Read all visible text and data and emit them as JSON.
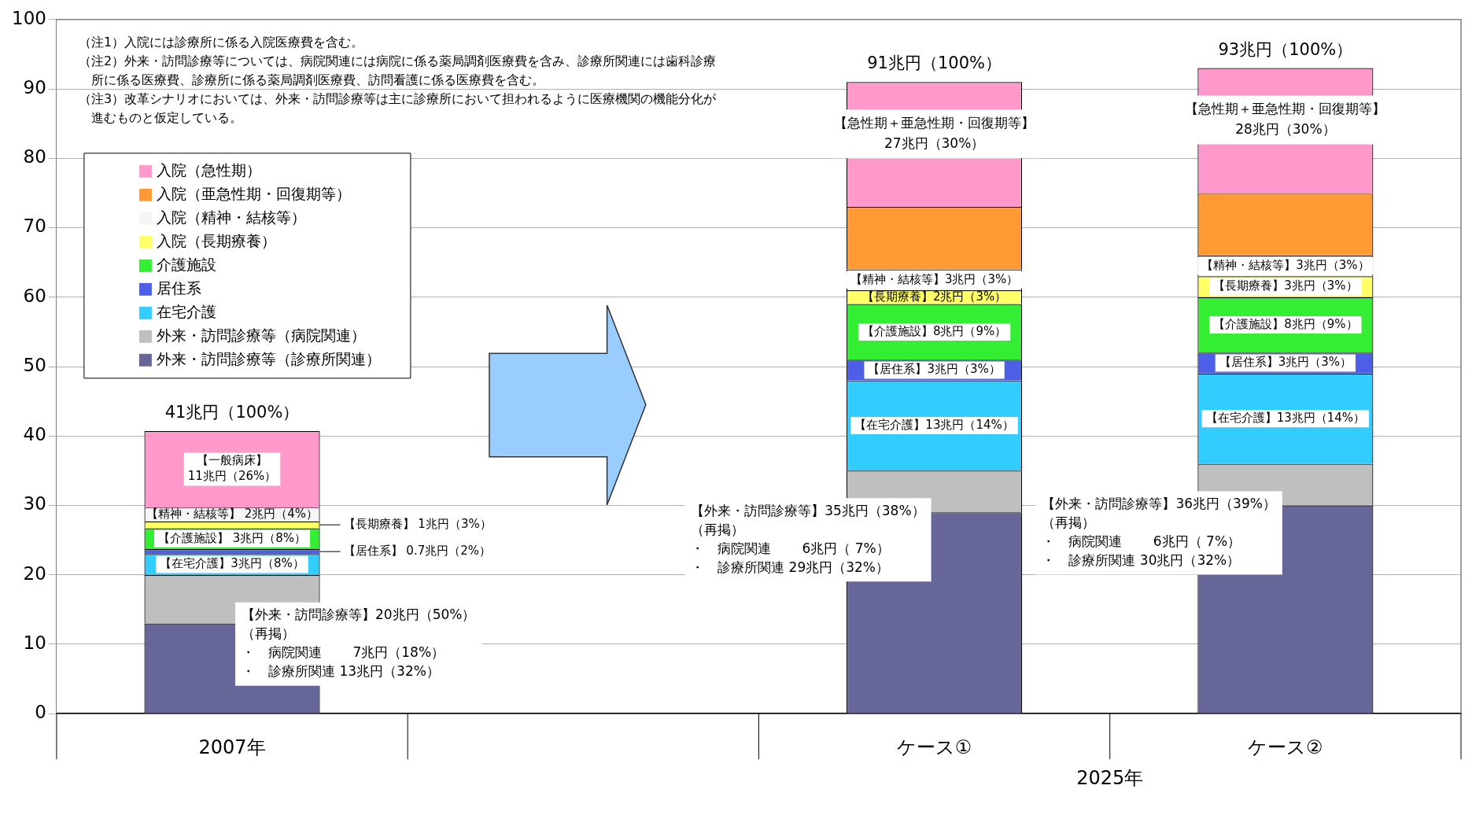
{
  "chart_data": {
    "type": "bar",
    "stacked": true,
    "categories": [
      "2007年",
      null,
      "ケース①",
      "ケース②"
    ],
    "series": [
      {
        "name": "外来・訪問診療等（診療所関連）",
        "color": "#666699",
        "values": [
          13,
          null,
          29,
          30
        ]
      },
      {
        "name": "外来・訪問診療等（病院関連）",
        "color": "#bfbfbf",
        "values": [
          7,
          null,
          6,
          6
        ]
      },
      {
        "name": "在宅介護",
        "color": "#33ccff",
        "values": [
          3,
          null,
          13,
          13
        ],
        "value_labels": [
          "【在宅介護】3兆円（8%）",
          null,
          "【在宅介護】13兆円（14%）",
          "【在宅介護】13兆円（14%）"
        ]
      },
      {
        "name": "居住系",
        "color": "#4d5fe6",
        "values": [
          0.7,
          null,
          3,
          3
        ],
        "value_labels": [
          "【居住系】 0.7兆円（2%）",
          null,
          "【居住系】3兆円（3%）",
          "【居住系】3兆円（3%）"
        ]
      },
      {
        "name": "介護施設",
        "color": "#33ee33",
        "values": [
          3,
          null,
          8,
          8
        ],
        "value_labels": [
          "【介護施設】 3兆円（8%）",
          null,
          "【介護施設】8兆円（9%）",
          "【介護施設】8兆円（9%）"
        ]
      },
      {
        "name": "入院（長期療養）",
        "color": "#ffff66",
        "values": [
          1,
          null,
          2,
          3
        ],
        "value_labels": [
          "【長期療養】 1兆円（3%）",
          null,
          "【長期療養】2兆円（3%）",
          "【長期療養】3兆円（3%）"
        ]
      },
      {
        "name": "入院（精神・結核等）",
        "color": "#f5f5f5",
        "values": [
          2,
          null,
          3,
          3
        ],
        "value_labels": [
          "【精神・結核等】 2兆円（4%）",
          null,
          "【精神・結核等】3兆円（3%）",
          "【精神・結核等】3兆円（3%）"
        ]
      },
      {
        "name": "入院（亜急性期・回復期等）",
        "color": "#ff9933",
        "values": [
          null,
          null,
          9,
          9
        ]
      },
      {
        "name": "入院（急性期）",
        "color": "#ff99cc",
        "values": [
          11,
          null,
          18,
          18
        ],
        "value_labels": [
          "【一般病床】\n11兆円（26%）",
          null,
          null,
          null
        ]
      }
    ],
    "totals": [
      "41兆円（100%）",
      null,
      "91兆円（100%）",
      "93兆円（100%）"
    ],
    "ylim": [
      0,
      100
    ],
    "yticks": [
      0,
      10,
      20,
      30,
      40,
      50,
      60,
      70,
      80,
      90,
      100
    ],
    "grid": "y",
    "legend": "top left",
    "annotations": [
      "（注1）入院には診療所に係る入院医療費を含む。",
      "（注2）外来・訪問診療等については、病院関連には病院に係る薬局調剤医療費を含み、診療所関連には歯科診療所に係る医療費、診療所に係る薬局調剤医療費、訪問看護に係る医療費を含む。",
      "（注3）改革シナリオにおいては、外来・訪問診療等は主に診療所において担われるように医療機関の機能分化が進むものと仮定している。",
      {
        "text": "【外来・訪問診療等】20兆円（50%）",
        "x": "2007年",
        "y": 20
      },
      "（再掲）",
      "・　病院関連　　 7兆円（18%）",
      "・　診療所関連 13兆円（32%）",
      {
        "text": "【外来・訪問診療等】35兆円（38%）",
        "x": "ケース①",
        "y": 35
      },
      "（再掲）",
      "・　病院関連　　 6兆円（ 7%）",
      "・　診療所関連 29兆円（32%）",
      {
        "text": "【外来・訪問診療等】36兆円（39%）",
        "x": "ケース②",
        "y": 36
      },
      "（再掲）",
      "・　病院関連　　 6兆円（ 7%）",
      "・　診療所関連 30兆円（32%）",
      {
        "text": "【急性期＋亜急性期・回復期等】",
        "x": "ケース①",
        "y": 91
      },
      "27兆円（30%）",
      {
        "text": "【急性期＋亜急性期・回復期等】",
        "x": "ケース②",
        "y": 93
      },
      "28兆円（30%）",
      "2025年"
    ]
  }
}
